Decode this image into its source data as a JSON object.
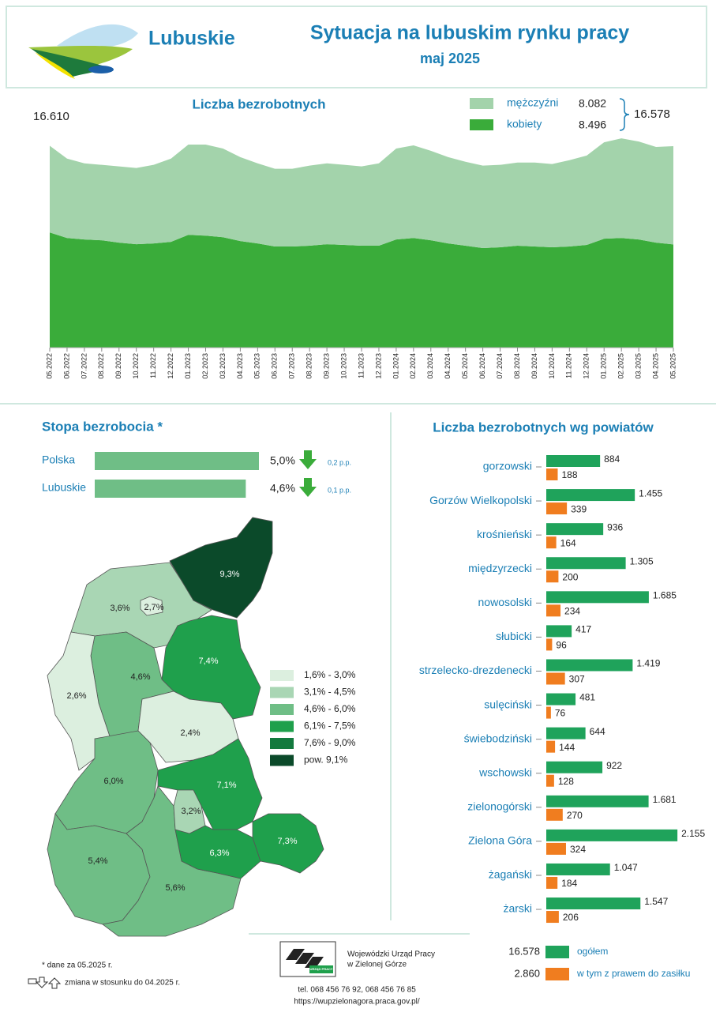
{
  "header": {
    "logo_text": "Lubuskie",
    "title": "Sytuacja na lubuskim rynku pracy",
    "subtitle": "maj 2025"
  },
  "chart_data": [
    {
      "type": "area",
      "title": "Liczba bezrobotnych",
      "stacked": true,
      "categories": [
        "05.2022",
        "06.2022",
        "07.2022",
        "08.2022",
        "09.2022",
        "10.2022",
        "11.2022",
        "12.2022",
        "01.2023",
        "02.2023",
        "03.2023",
        "04.2023",
        "05.2023",
        "06.2023",
        "07.2023",
        "08.2023",
        "09.2023",
        "10.2023",
        "11.2023",
        "12.2023",
        "01.2024",
        "02.2024",
        "03.2024",
        "04.2024",
        "05.2024",
        "06.2024",
        "07.2024",
        "08.2024",
        "09.2024",
        "10.2024",
        "11.2024",
        "12.2024",
        "01.2025",
        "02.2025",
        "03.2025",
        "04.2025",
        "05.2025"
      ],
      "series": [
        {
          "name": "mężczyźni",
          "color": "#a3d3ab",
          "values": [
            7138,
            6528,
            6272,
            6208,
            6272,
            6272,
            6464,
            6848,
            7424,
            7488,
            7296,
            6912,
            6592,
            6400,
            6400,
            6592,
            6656,
            6592,
            6528,
            6784,
            7488,
            7616,
            7360,
            7104,
            6912,
            6784,
            6784,
            6848,
            6912,
            6848,
            7104,
            7360,
            7936,
            8192,
            8064,
            7872,
            8082
          ],
          "latest": {
            "value": 8082,
            "label": "8.082"
          }
        },
        {
          "name": "kobiety",
          "color": "#3aac3a",
          "values": [
            9472,
            9024,
            8896,
            8832,
            8640,
            8512,
            8576,
            8704,
            9280,
            9216,
            9088,
            8768,
            8576,
            8320,
            8320,
            8384,
            8512,
            8448,
            8384,
            8384,
            8896,
            9024,
            8832,
            8576,
            8384,
            8192,
            8256,
            8384,
            8320,
            8256,
            8320,
            8448,
            8960,
            9024,
            8896,
            8640,
            8496
          ],
          "latest": {
            "value": 8496,
            "label": "8.496"
          }
        }
      ],
      "first_total": {
        "value": 16610,
        "label": "16.610"
      },
      "latest_total": {
        "value": 16578,
        "label": "16.578"
      },
      "ylim": [
        0,
        17000
      ]
    },
    {
      "type": "hbar",
      "title": "Stopa bezrobocia *",
      "categories": [
        "Polska",
        "Lubuskie"
      ],
      "values": [
        5.0,
        4.6
      ],
      "value_labels": [
        "5,0%",
        "4,6%"
      ],
      "changes": [
        {
          "value": 0.2,
          "label": "0,2 p.p.",
          "direction": "down"
        },
        {
          "value": 0.1,
          "label": "0,1 p.p.",
          "direction": "down"
        }
      ],
      "color": "#6fbe86",
      "xlim": [
        0,
        5
      ]
    },
    {
      "type": "grouped-hbar",
      "title": "Liczba bezrobotnych wg powiatów",
      "categories": [
        "gorzowski",
        "Gorzów Wielkopolski",
        "krośnieński",
        "międzyrzecki",
        "nowosolski",
        "słubicki",
        "strzelecko-drezdenecki",
        "sulęciński",
        "świebodziński",
        "wschowski",
        "zielonogórski",
        "Zielona Góra",
        "żagański",
        "żarski"
      ],
      "series": [
        {
          "name": "ogółem",
          "color": "#1fa35b",
          "values": [
            884,
            1455,
            936,
            1305,
            1685,
            417,
            1419,
            481,
            644,
            922,
            1681,
            2155,
            1047,
            1547
          ],
          "value_labels": [
            "884",
            "1.455",
            "936",
            "1.305",
            "1.685",
            "417",
            "1.419",
            "481",
            "644",
            "922",
            "1.681",
            "2.155",
            "1.047",
            "1.547"
          ],
          "total": {
            "value": 16578,
            "label": "16.578"
          }
        },
        {
          "name": "w tym z prawem do zasiłku",
          "color": "#f07d1f",
          "values": [
            188,
            339,
            164,
            200,
            234,
            96,
            307,
            76,
            144,
            128,
            270,
            324,
            184,
            206
          ],
          "total": {
            "value": 2860,
            "label": "2.860"
          }
        }
      ],
      "xlim": [
        0,
        2200
      ]
    }
  ],
  "map": {
    "regions": [
      {
        "value": 9.3,
        "label": "9,3%",
        "color": "#0b4a2a"
      },
      {
        "value": 3.6,
        "label": "3,6%",
        "color": "#a9d6b4"
      },
      {
        "value": 2.7,
        "label": "2,7%",
        "color": "#dcefdf"
      },
      {
        "value": 7.4,
        "label": "7,4%",
        "color": "#1fa04c"
      },
      {
        "value": 4.6,
        "label": "4,6%",
        "color": "#6fbe86"
      },
      {
        "value": 2.6,
        "label": "2,6%",
        "color": "#dcefdf"
      },
      {
        "value": 2.4,
        "label": "2,4%",
        "color": "#dcefdf"
      },
      {
        "value": 6.0,
        "label": "6,0%",
        "color": "#6fbe86"
      },
      {
        "value": 7.1,
        "label": "7,1%",
        "color": "#1fa04c"
      },
      {
        "value": 3.2,
        "label": "3,2%",
        "color": "#a9d6b4"
      },
      {
        "value": 6.3,
        "label": "6,3%",
        "color": "#1fa04c"
      },
      {
        "value": 7.3,
        "label": "7,3%",
        "color": "#1fa04c"
      },
      {
        "value": 5.4,
        "label": "5,4%",
        "color": "#6fbe86"
      },
      {
        "value": 5.6,
        "label": "5,6%",
        "color": "#6fbe86"
      }
    ],
    "legend": [
      {
        "label": "1,6% - 3,0%",
        "color": "#dcefdf"
      },
      {
        "label": "3,1% - 4,5%",
        "color": "#a9d6b4"
      },
      {
        "label": "4,6% - 6,0%",
        "color": "#6fbe86"
      },
      {
        "label": "6,1% - 7,5%",
        "color": "#1fa04c"
      },
      {
        "label": "7,6% - 9,0%",
        "color": "#137a3e"
      },
      {
        "label": "pow. 9,1%",
        "color": "#0b4a2a"
      }
    ]
  },
  "footer": {
    "note": "* dane za 05.2025 r.",
    "change_note": "zmiana w stosunku do 04.2025 r.",
    "logo_text": "URZĄD PRACY",
    "office_line1": "Wojewódzki Urząd Pracy",
    "office_line2": "w Zielonej Górze",
    "phone": "tel. 068 456 76 92,  068 456 76 85",
    "url": "https://wupzielonagora.praca.gov.pl/"
  }
}
